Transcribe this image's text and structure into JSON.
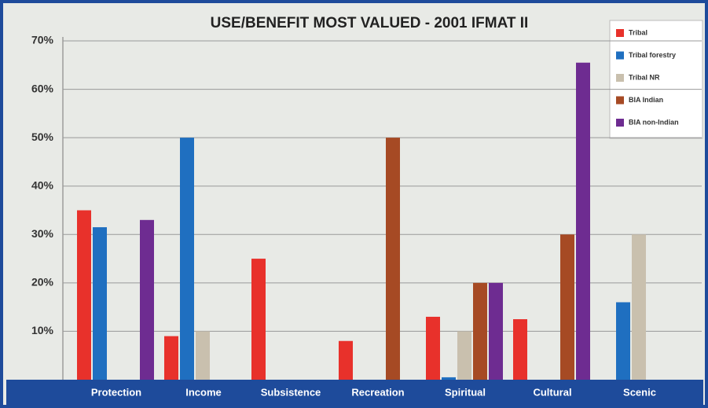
{
  "chart_data": {
    "type": "bar",
    "title": "USE/BENEFIT MOST VALUED - 2001 IFMAT II",
    "categories": [
      "Protection",
      "Income",
      "Subsistence",
      "Recreation",
      "Spiritual",
      "Cultural",
      "Scenic"
    ],
    "series": [
      {
        "name": "Tribal",
        "color": "#e8312b",
        "values": [
          35,
          9,
          25,
          8,
          13,
          12.5,
          null
        ]
      },
      {
        "name": "Tribal forestry",
        "color": "#1f6fc0",
        "values": [
          31.5,
          50,
          null,
          null,
          0.5,
          null,
          16
        ]
      },
      {
        "name": "Tribal NR",
        "color": "#c9c0ae",
        "values": [
          null,
          10,
          null,
          null,
          10,
          null,
          30
        ]
      },
      {
        "name": "BIA Indian",
        "color": "#a64a24",
        "values": [
          null,
          null,
          null,
          50,
          20,
          30,
          null
        ]
      },
      {
        "name": "BIA non-Indian",
        "color": "#6e2c91",
        "values": [
          33,
          null,
          null,
          null,
          20,
          65.5,
          null
        ]
      }
    ],
    "ylim": [
      0,
      70
    ],
    "yticks": [
      {
        "value": 10,
        "label": "10%"
      },
      {
        "value": 20,
        "label": "20%"
      },
      {
        "value": 30,
        "label": "30%"
      },
      {
        "value": 40,
        "label": "40%"
      },
      {
        "value": 50,
        "label": "50%"
      },
      {
        "value": 60,
        "label": "60%"
      },
      {
        "value": 70,
        "label": "70%"
      }
    ],
    "grid": true,
    "legend": "top-right"
  }
}
